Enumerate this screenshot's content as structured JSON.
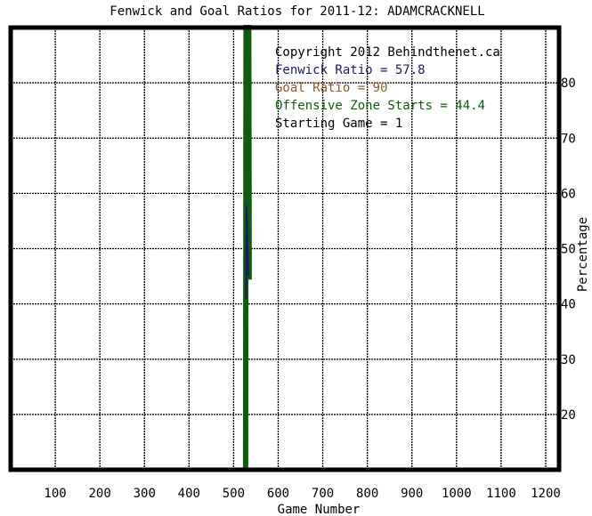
{
  "chart_data": {
    "type": "line",
    "title": "Fenwick and Goal Ratios for 2011-12: ADAMCRACKNELL",
    "xlabel": "Game Number",
    "ylabel": "Percentage",
    "xlim": [
      0,
      1230
    ],
    "ylim": [
      10,
      90
    ],
    "x_ticks": [
      100,
      200,
      300,
      400,
      500,
      600,
      700,
      800,
      900,
      1000,
      1100,
      1200
    ],
    "y_ticks": [
      20,
      30,
      40,
      50,
      60,
      70,
      80
    ],
    "grid": true,
    "series": [
      {
        "name": "Fenwick Ratio",
        "color": "#1a1a66",
        "points": [
          [
            528,
            41
          ],
          [
            529,
            57.8
          ],
          [
            531,
            51
          ],
          [
            533,
            45
          ]
        ]
      },
      {
        "name": "Goal Ratio",
        "color": "#8b5a2b",
        "points": [
          [
            530,
            90
          ],
          [
            531,
            90
          ]
        ]
      },
      {
        "name": "Offensive Zone Starts",
        "color": "#0f5c0f",
        "points": [
          [
            527,
            0
          ],
          [
            528,
            100
          ],
          [
            534,
            100
          ],
          [
            535,
            44.4
          ]
        ]
      }
    ],
    "annotations": [
      {
        "text": "Copyright 2012 Behindthenet.ca",
        "color": "#000000"
      },
      {
        "text": "Fenwick Ratio = 57.8",
        "color": "#1a1a66"
      },
      {
        "text": "Goal Ratio = 90",
        "color": "#8b5a2b"
      },
      {
        "text": "Offensive Zone Starts = 44.4",
        "color": "#0f5c0f"
      },
      {
        "text": "Starting Game = 1",
        "color": "#000000"
      }
    ]
  }
}
